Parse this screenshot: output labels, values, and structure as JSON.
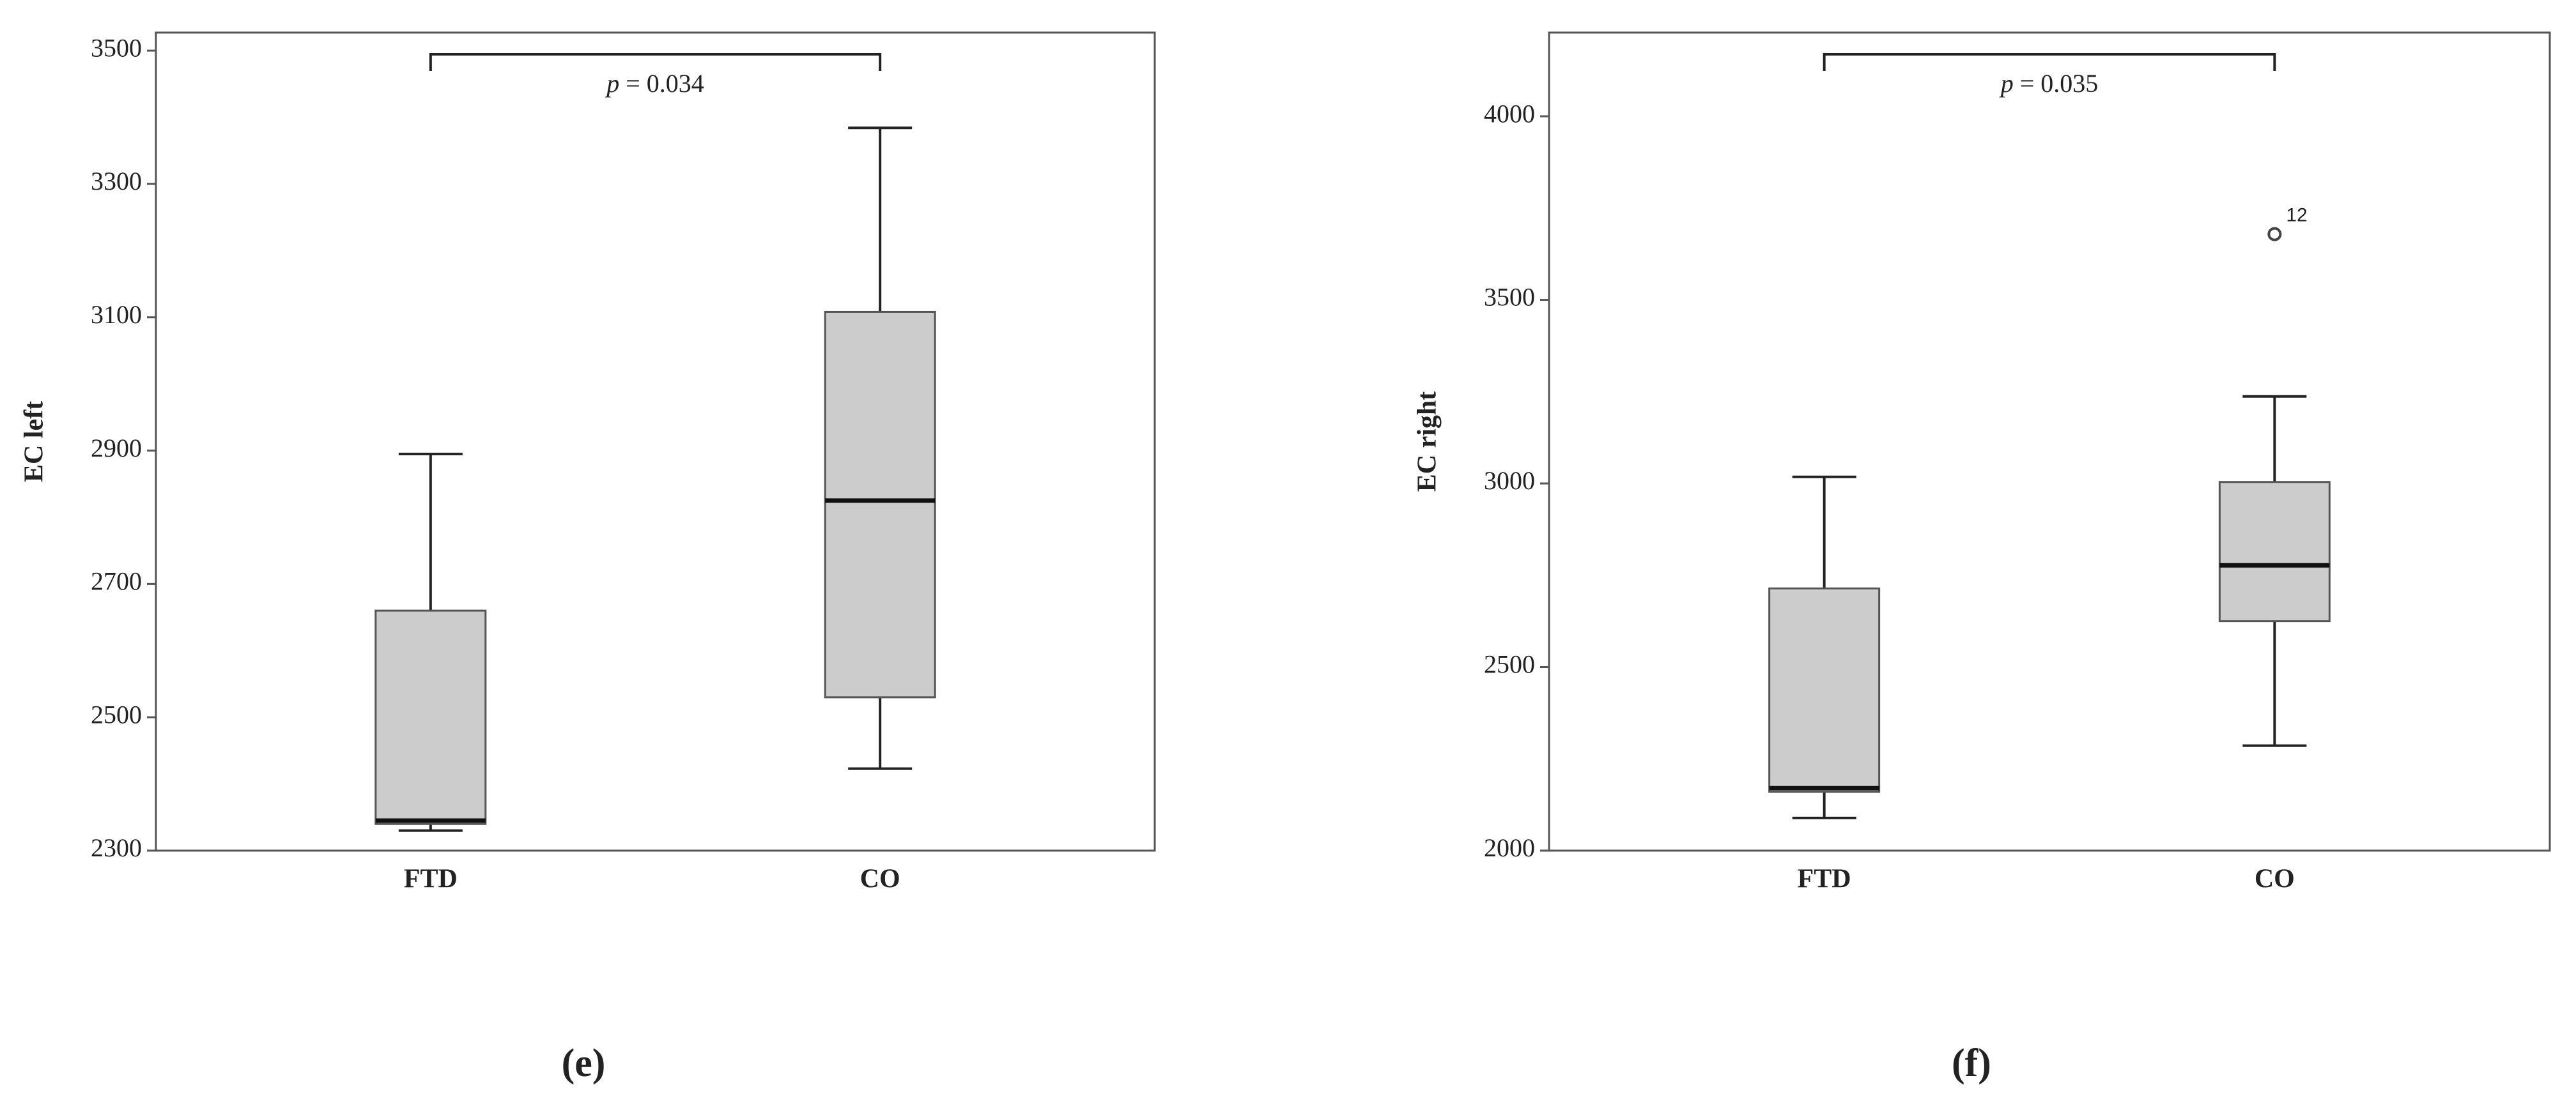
{
  "chart_data": [
    {
      "type": "box",
      "panel_label": "(e)",
      "ylabel": "EC left",
      "categories": [
        "FTD",
        "CO"
      ],
      "boxes": [
        {
          "min": 2330,
          "q1": 2340,
          "median": 2345,
          "q3": 2660,
          "max": 2895,
          "outliers": []
        },
        {
          "min": 2423,
          "q1": 2530,
          "median": 2825,
          "q3": 3108,
          "max": 3384,
          "outliers": []
        }
      ],
      "annotation_symbol": "p",
      "annotation_value": "= 0.034",
      "ylim": [
        2300,
        3527
      ],
      "yticks": [
        2300,
        2500,
        2700,
        2900,
        3100,
        3300,
        3500
      ],
      "color": "#cccccc"
    },
    {
      "type": "box",
      "panel_label": "(f)",
      "ylabel": "EC right",
      "categories": [
        "FTD",
        "CO"
      ],
      "boxes": [
        {
          "min": 2089,
          "q1": 2160,
          "median": 2170,
          "q3": 2714,
          "max": 3018,
          "outliers": []
        },
        {
          "min": 2286,
          "q1": 2625,
          "median": 2777,
          "q3": 3004,
          "max": 3237,
          "outliers": [
            {
              "value": 3679,
              "label": "12"
            }
          ]
        }
      ],
      "annotation_symbol": "p",
      "annotation_value": "= 0.035",
      "ylim": [
        2000,
        4228
      ],
      "yticks": [
        2000,
        2500,
        3000,
        3500,
        4000
      ],
      "color": "#cccccc"
    }
  ]
}
